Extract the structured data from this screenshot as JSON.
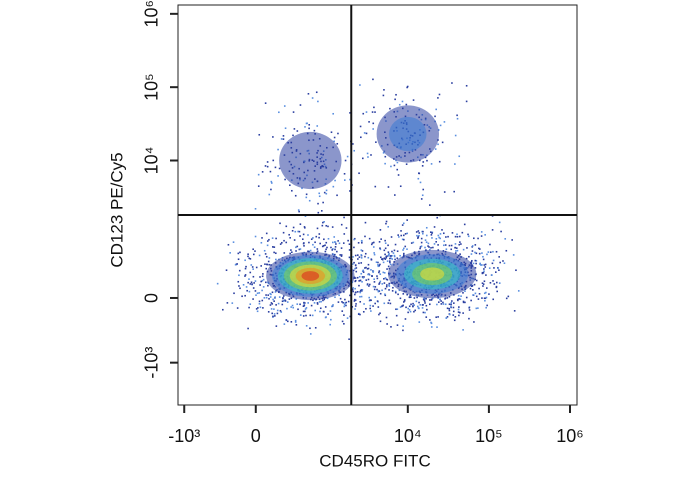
{
  "chart_data": {
    "type": "scatter",
    "scale": "biexponential",
    "xlabel": "CD45RO FITC",
    "ylabel": "CD123 PE/Cy5",
    "xlim": [
      -1200,
      1220000
    ],
    "ylim": [
      -3840,
      1320000
    ],
    "xticks": [
      {
        "value": -1000,
        "label": "-10³"
      },
      0,
      {
        "value": 10000,
        "label": "10⁴"
      },
      {
        "value": 100000,
        "label": "10⁵"
      },
      {
        "value": 1000000,
        "label": "10⁶"
      }
    ],
    "yticks": [
      {
        "value": -1000,
        "label": "-10³"
      },
      0,
      {
        "value": 10000,
        "label": "10⁴"
      },
      {
        "value": 100000,
        "label": "10⁵"
      },
      {
        "value": 1000000,
        "label": "10⁶"
      }
    ],
    "x": [
      600,
      20000,
      10000,
      600
    ],
    "y": [
      200,
      220,
      23000,
      10000
    ],
    "colors": [
      "#e0201c",
      "#f2e02a",
      "#3a7bd5",
      "#2b3fa0"
    ],
    "gates": {
      "x": 2000,
      "y": 1800
    }
  }
}
